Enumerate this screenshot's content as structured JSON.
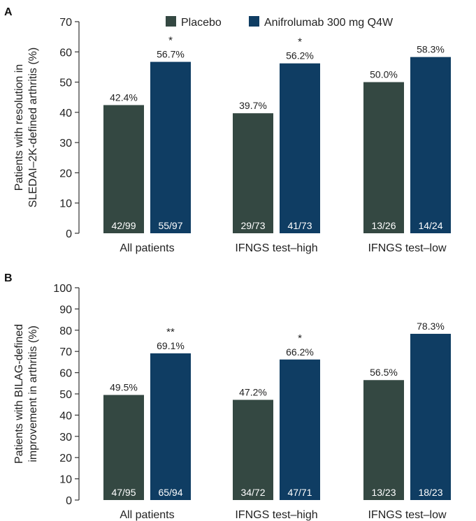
{
  "legend": [
    {
      "label": "Placebo",
      "color": "#344842"
    },
    {
      "label": "Anifrolumab 300 mg Q4W",
      "color": "#0f3d63"
    }
  ],
  "chart_data": [
    {
      "type": "bar",
      "panel_label": "A",
      "ylabel": [
        "Patients with resolution in",
        "SLEDAI–2K-defined arthritis (%)"
      ],
      "ylim": [
        0,
        70
      ],
      "yticks": [
        0,
        10,
        20,
        30,
        40,
        50,
        60,
        70
      ],
      "categories": [
        "All patients",
        "IFNGS test–high",
        "IFNGS test–low"
      ],
      "series": [
        {
          "name": "Placebo",
          "color": "#344842",
          "values": [
            42.4,
            39.7,
            50.0
          ],
          "value_labels": [
            "42.4%",
            "39.7%",
            "50.0%"
          ],
          "n_labels": [
            "42/99",
            "29/73",
            "13/26"
          ]
        },
        {
          "name": "Anifrolumab 300 mg Q4W",
          "color": "#0f3d63",
          "values": [
            56.7,
            56.2,
            58.3
          ],
          "value_labels": [
            "56.7%",
            "56.2%",
            "58.3%"
          ],
          "n_labels": [
            "55/97",
            "41/73",
            "14/24"
          ]
        }
      ],
      "significance": [
        "*",
        "*",
        ""
      ]
    },
    {
      "type": "bar",
      "panel_label": "B",
      "ylabel": [
        "Patients with BILAG-defined",
        "improvement in arthritis (%)"
      ],
      "ylim": [
        0,
        100
      ],
      "yticks": [
        0,
        10,
        20,
        30,
        40,
        50,
        60,
        70,
        80,
        90,
        100
      ],
      "categories": [
        "All patients",
        "IFNGS test–high",
        "IFNGS test–low"
      ],
      "series": [
        {
          "name": "Placebo",
          "color": "#344842",
          "values": [
            49.5,
            47.2,
            56.5
          ],
          "value_labels": [
            "49.5%",
            "47.2%",
            "56.5%"
          ],
          "n_labels": [
            "47/95",
            "34/72",
            "13/23"
          ]
        },
        {
          "name": "Anifrolumab 300 mg Q4W",
          "color": "#0f3d63",
          "values": [
            69.1,
            66.2,
            78.3
          ],
          "value_labels": [
            "69.1%",
            "66.2%",
            "78.3%"
          ],
          "n_labels": [
            "65/94",
            "47/71",
            "18/23"
          ]
        }
      ],
      "significance": [
        "**",
        "*",
        ""
      ]
    }
  ]
}
